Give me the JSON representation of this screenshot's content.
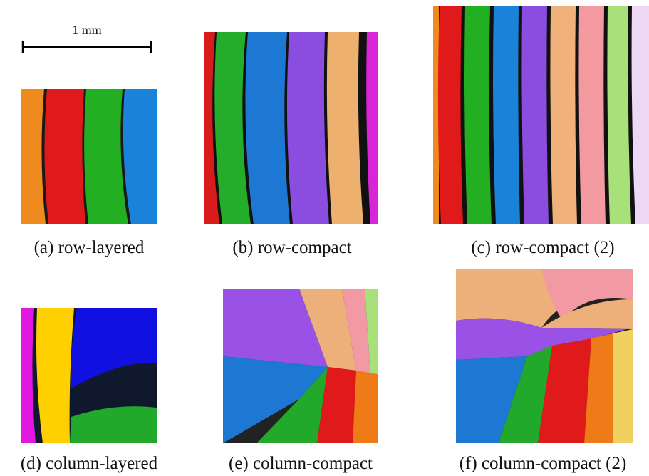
{
  "scale_bar": {
    "label": "1 mm"
  },
  "panels": [
    {
      "caption": "(a) row-layered"
    },
    {
      "caption": "(b) row-compact"
    },
    {
      "caption": "(c) row-compact (2)"
    },
    {
      "caption": "(d) column-layered"
    },
    {
      "caption": "(e) column-compact"
    },
    {
      "caption": "(f) column-compact (2)"
    }
  ]
}
